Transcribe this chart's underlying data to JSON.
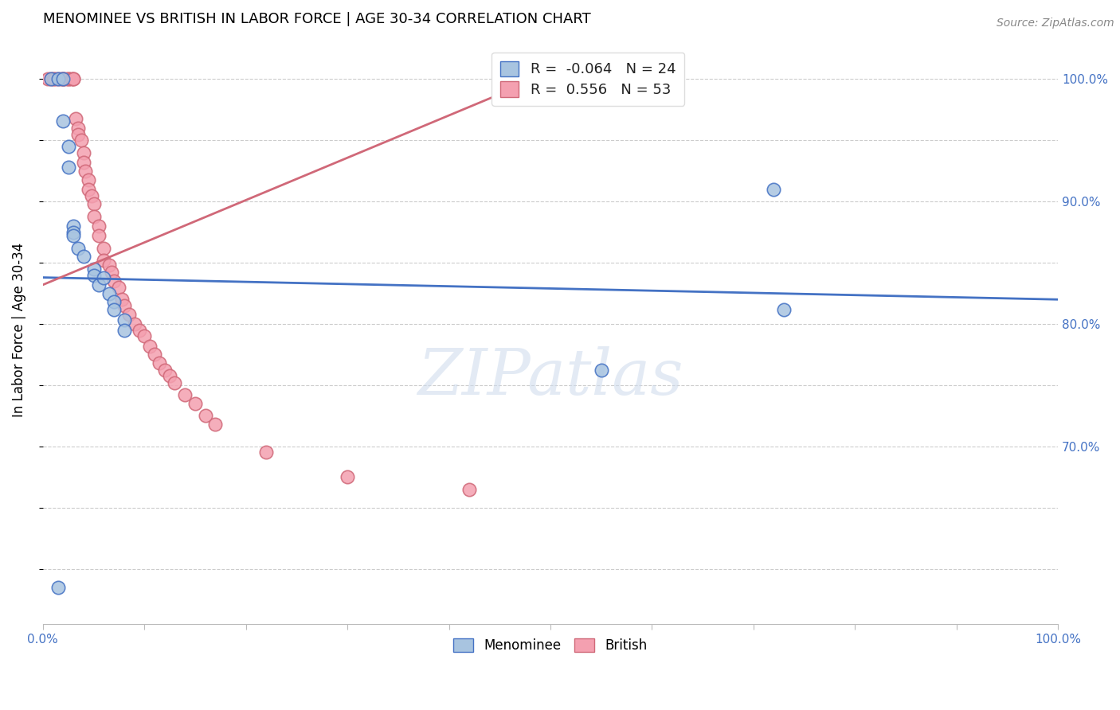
{
  "title": "MENOMINEE VS BRITISH IN LABOR FORCE | AGE 30-34 CORRELATION CHART",
  "source": "Source: ZipAtlas.com",
  "ylabel": "In Labor Force | Age 30-34",
  "xlim": [
    0.0,
    1.0
  ],
  "ylim": [
    0.555,
    1.035
  ],
  "x_tick_positions": [
    0.0,
    0.1,
    0.2,
    0.3,
    0.4,
    0.5,
    0.6,
    0.7,
    0.8,
    0.9,
    1.0
  ],
  "x_tick_labels": [
    "0.0%",
    "",
    "",
    "",
    "",
    "",
    "",
    "",
    "",
    "",
    "100.0%"
  ],
  "y_tick_positions": [
    0.6,
    0.65,
    0.7,
    0.75,
    0.8,
    0.85,
    0.9,
    0.95,
    1.0
  ],
  "y_tick_labels": [
    "",
    "",
    "70.0%",
    "",
    "80.0%",
    "",
    "90.0%",
    "",
    "100.0%"
  ],
  "menominee_R": -0.064,
  "menominee_N": 24,
  "british_R": 0.556,
  "british_N": 53,
  "menominee_color": "#a8c4e0",
  "british_color": "#f4a0b0",
  "menominee_line_color": "#4472c4",
  "british_line_color": "#d06878",
  "watermark": "ZIPatlas",
  "menominee_x": [
    0.008,
    0.015,
    0.02,
    0.02,
    0.025,
    0.025,
    0.03,
    0.03,
    0.03,
    0.035,
    0.04,
    0.05,
    0.05,
    0.055,
    0.06,
    0.065,
    0.07,
    0.07,
    0.08,
    0.08,
    0.55,
    0.72,
    0.73,
    0.015
  ],
  "menominee_y": [
    1.0,
    1.0,
    1.0,
    0.966,
    0.945,
    0.928,
    0.88,
    0.875,
    0.872,
    0.862,
    0.855,
    0.845,
    0.84,
    0.832,
    0.838,
    0.825,
    0.818,
    0.812,
    0.803,
    0.795,
    0.762,
    0.91,
    0.812,
    0.585
  ],
  "british_x": [
    0.005,
    0.008,
    0.01,
    0.012,
    0.015,
    0.018,
    0.02,
    0.02,
    0.022,
    0.025,
    0.025,
    0.028,
    0.03,
    0.03,
    0.032,
    0.035,
    0.035,
    0.038,
    0.04,
    0.04,
    0.042,
    0.045,
    0.045,
    0.048,
    0.05,
    0.05,
    0.055,
    0.055,
    0.06,
    0.06,
    0.065,
    0.068,
    0.07,
    0.075,
    0.078,
    0.08,
    0.085,
    0.09,
    0.095,
    0.1,
    0.105,
    0.11,
    0.115,
    0.12,
    0.125,
    0.13,
    0.14,
    0.15,
    0.16,
    0.17,
    0.22,
    0.3,
    0.42
  ],
  "british_y": [
    1.0,
    1.0,
    1.0,
    1.0,
    1.0,
    1.0,
    1.0,
    1.0,
    1.0,
    1.0,
    1.0,
    1.0,
    1.0,
    1.0,
    0.968,
    0.96,
    0.955,
    0.95,
    0.94,
    0.932,
    0.925,
    0.918,
    0.91,
    0.905,
    0.898,
    0.888,
    0.88,
    0.872,
    0.862,
    0.852,
    0.848,
    0.842,
    0.835,
    0.83,
    0.82,
    0.815,
    0.808,
    0.8,
    0.795,
    0.79,
    0.782,
    0.775,
    0.768,
    0.762,
    0.758,
    0.752,
    0.742,
    0.735,
    0.725,
    0.718,
    0.695,
    0.675,
    0.665
  ],
  "menominee_line_x": [
    0.0,
    1.0
  ],
  "british_line_x_start": 0.0,
  "british_line_x_end": 0.5
}
